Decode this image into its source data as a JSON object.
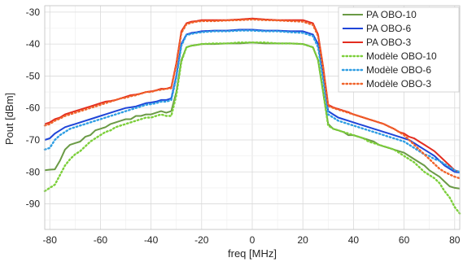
{
  "chart_data": {
    "type": "line",
    "title": "",
    "xlabel": "freq [MHz]",
    "ylabel": "Pout [dBm]",
    "xlim": [
      -82,
      82
    ],
    "ylim": [
      -98,
      -28
    ],
    "xticks": [
      -80,
      -60,
      -40,
      -20,
      0,
      20,
      40,
      60,
      80
    ],
    "yticks": [
      -30,
      -40,
      -50,
      -60,
      -70,
      -80,
      -90
    ],
    "xtick_labels": [
      "-80",
      "-60",
      "-40",
      "-20",
      "0",
      "20",
      "40",
      "60",
      "80"
    ],
    "ytick_labels": [
      "-30",
      "-40",
      "-50",
      "-60",
      "-70",
      "-80",
      "-90"
    ],
    "grid": true,
    "legend_position": "top-right",
    "series": [
      {
        "name": "PA OBO-10",
        "color": "#6a9a45",
        "dash": "solid",
        "x": [
          -82,
          -80,
          -78,
          -76,
          -74,
          -72,
          -70,
          -68,
          -66,
          -64,
          -62,
          -60,
          -58,
          -56,
          -54,
          -52,
          -50,
          -48,
          -46,
          -44,
          -42,
          -40,
          -38,
          -36,
          -34,
          -32,
          -30,
          -28,
          -26,
          -24,
          -22,
          -20,
          -15,
          -10,
          -5,
          0,
          5,
          10,
          15,
          20,
          22,
          24,
          26,
          28,
          30,
          32,
          34,
          36,
          38,
          40,
          42,
          44,
          46,
          48,
          50,
          52,
          54,
          56,
          58,
          60,
          62,
          64,
          66,
          68,
          70,
          72,
          74,
          76,
          78,
          80,
          82
        ],
        "y": [
          -79.5,
          -79.3,
          -79.2,
          -76.5,
          -73.0,
          -71.5,
          -71.0,
          -70.5,
          -69.0,
          -68.5,
          -67.0,
          -66.5,
          -66.0,
          -65.0,
          -64.5,
          -64.0,
          -63.5,
          -63.5,
          -62.5,
          -62.5,
          -62.0,
          -62.0,
          -61.5,
          -61.0,
          -61.5,
          -61.0,
          -55.0,
          -45.0,
          -41.0,
          -40.5,
          -40.3,
          -40.0,
          -40.0,
          -39.8,
          -39.8,
          -39.5,
          -39.8,
          -39.8,
          -39.8,
          -40.0,
          -40.5,
          -41.0,
          -45.0,
          -55.0,
          -65.0,
          -66.5,
          -67.0,
          -67.5,
          -68.5,
          -68.5,
          -69.0,
          -69.5,
          -70.0,
          -70.5,
          -71.5,
          -72.0,
          -72.5,
          -73.0,
          -73.5,
          -74.0,
          -75.0,
          -76.0,
          -77.0,
          -78.0,
          -79.5,
          -80.5,
          -81.5,
          -83.0,
          -84.5,
          -85.0,
          -85.2
        ]
      },
      {
        "name": "PA OBO-6",
        "color": "#1f45d8",
        "dash": "solid",
        "x": [
          -82,
          -80,
          -78,
          -76,
          -74,
          -72,
          -70,
          -68,
          -66,
          -64,
          -62,
          -60,
          -58,
          -56,
          -54,
          -52,
          -50,
          -48,
          -46,
          -44,
          -42,
          -40,
          -38,
          -36,
          -34,
          -32,
          -30,
          -28,
          -26,
          -24,
          -22,
          -20,
          -15,
          -10,
          -5,
          0,
          5,
          10,
          15,
          20,
          22,
          24,
          26,
          28,
          30,
          32,
          34,
          36,
          38,
          40,
          42,
          44,
          46,
          48,
          50,
          52,
          54,
          56,
          58,
          60,
          62,
          64,
          66,
          68,
          70,
          72,
          74,
          76,
          78,
          80,
          82
        ],
        "y": [
          -70.0,
          -69.5,
          -68.0,
          -67.0,
          -66.0,
          -65.5,
          -65.0,
          -64.5,
          -64.0,
          -63.5,
          -63.0,
          -62.5,
          -62.0,
          -61.5,
          -61.0,
          -60.5,
          -60.0,
          -59.8,
          -59.5,
          -59.0,
          -58.5,
          -58.3,
          -58.0,
          -57.5,
          -57.5,
          -57.0,
          -50.0,
          -40.0,
          -37.0,
          -36.5,
          -36.3,
          -36.0,
          -35.8,
          -35.8,
          -35.5,
          -35.5,
          -35.8,
          -35.8,
          -36.0,
          -36.0,
          -36.5,
          -37.0,
          -40.0,
          -50.0,
          -61.0,
          -62.0,
          -63.0,
          -63.5,
          -64.0,
          -64.5,
          -65.0,
          -65.5,
          -66.0,
          -66.5,
          -67.0,
          -67.5,
          -68.0,
          -68.5,
          -69.0,
          -69.5,
          -70.0,
          -71.0,
          -72.0,
          -73.0,
          -74.0,
          -75.0,
          -76.5,
          -78.0,
          -79.0,
          -80.0,
          -80.2
        ]
      },
      {
        "name": "PA OBO-3",
        "color": "#e32c1f",
        "dash": "solid",
        "x": [
          -82,
          -80,
          -78,
          -76,
          -74,
          -72,
          -70,
          -68,
          -66,
          -64,
          -62,
          -60,
          -58,
          -56,
          -54,
          -52,
          -50,
          -48,
          -46,
          -44,
          -42,
          -40,
          -38,
          -36,
          -34,
          -32,
          -30,
          -28,
          -26,
          -24,
          -22,
          -20,
          -15,
          -10,
          -5,
          0,
          5,
          10,
          15,
          20,
          22,
          24,
          26,
          28,
          30,
          32,
          34,
          36,
          38,
          40,
          42,
          44,
          46,
          48,
          50,
          52,
          54,
          56,
          58,
          60,
          62,
          64,
          66,
          68,
          70,
          72,
          74,
          76,
          78,
          80,
          82
        ],
        "y": [
          -65.0,
          -64.5,
          -63.5,
          -63.0,
          -62.0,
          -61.5,
          -61.0,
          -60.5,
          -60.0,
          -59.5,
          -59.0,
          -58.5,
          -58.0,
          -57.8,
          -57.5,
          -57.0,
          -56.5,
          -56.0,
          -55.8,
          -55.5,
          -55.0,
          -54.8,
          -54.5,
          -54.0,
          -54.0,
          -53.5,
          -46.0,
          -36.0,
          -33.5,
          -33.0,
          -32.8,
          -32.5,
          -32.5,
          -32.5,
          -32.3,
          -32.0,
          -32.3,
          -32.5,
          -32.5,
          -32.5,
          -33.0,
          -33.5,
          -37.0,
          -47.0,
          -59.0,
          -59.8,
          -60.3,
          -60.8,
          -61.3,
          -62.0,
          -62.5,
          -63.0,
          -63.5,
          -64.0,
          -64.5,
          -65.0,
          -65.8,
          -66.5,
          -67.5,
          -68.0,
          -69.0,
          -69.5,
          -70.5,
          -71.5,
          -72.5,
          -73.5,
          -75.0,
          -76.5,
          -78.0,
          -79.5,
          -80.0
        ]
      },
      {
        "name": "Modèle OBO-10",
        "color": "#7ccf3a",
        "dash": "dotted",
        "x": [
          -82,
          -80,
          -78,
          -76,
          -74,
          -72,
          -70,
          -68,
          -66,
          -64,
          -62,
          -60,
          -58,
          -56,
          -54,
          -52,
          -50,
          -48,
          -46,
          -44,
          -42,
          -40,
          -38,
          -36,
          -34,
          -32,
          -30,
          -28,
          -26,
          -24,
          -22,
          -20,
          -15,
          -10,
          -5,
          0,
          5,
          10,
          15,
          20,
          22,
          24,
          26,
          28,
          30,
          32,
          34,
          36,
          38,
          40,
          42,
          44,
          46,
          48,
          50,
          52,
          54,
          56,
          58,
          60,
          62,
          64,
          66,
          68,
          70,
          72,
          74,
          76,
          78,
          80,
          82
        ],
        "y": [
          -86.0,
          -85.0,
          -84.0,
          -81.0,
          -78.0,
          -76.0,
          -74.5,
          -73.5,
          -72.0,
          -70.5,
          -69.5,
          -68.5,
          -67.5,
          -67.0,
          -66.0,
          -65.5,
          -65.0,
          -64.5,
          -64.0,
          -63.5,
          -63.0,
          -63.0,
          -62.5,
          -62.0,
          -62.5,
          -62.5,
          -56.0,
          -45.5,
          -41.0,
          -40.5,
          -40.3,
          -40.0,
          -39.8,
          -39.8,
          -39.5,
          -39.5,
          -39.5,
          -39.8,
          -39.8,
          -40.0,
          -40.5,
          -41.0,
          -45.0,
          -55.0,
          -65.5,
          -66.5,
          -67.0,
          -67.5,
          -68.0,
          -68.5,
          -69.0,
          -69.5,
          -70.5,
          -71.0,
          -71.5,
          -72.0,
          -72.5,
          -73.0,
          -74.0,
          -75.0,
          -76.0,
          -77.0,
          -78.5,
          -80.0,
          -81.0,
          -82.0,
          -83.5,
          -86.0,
          -88.0,
          -91.0,
          -93.0
        ]
      },
      {
        "name": "Modèle OBO-6",
        "color": "#2f9ee3",
        "dash": "dotted",
        "x": [
          -82,
          -80,
          -78,
          -76,
          -74,
          -72,
          -70,
          -68,
          -66,
          -64,
          -62,
          -60,
          -58,
          -56,
          -54,
          -52,
          -50,
          -48,
          -46,
          -44,
          -42,
          -40,
          -38,
          -36,
          -34,
          -32,
          -30,
          -28,
          -26,
          -24,
          -22,
          -20,
          -15,
          -10,
          -5,
          0,
          5,
          10,
          15,
          20,
          22,
          24,
          26,
          28,
          30,
          32,
          34,
          36,
          38,
          40,
          42,
          44,
          46,
          48,
          50,
          52,
          54,
          56,
          58,
          60,
          62,
          64,
          66,
          68,
          70,
          72,
          74,
          76,
          78,
          80,
          82
        ],
        "y": [
          -73.0,
          -72.5,
          -70.0,
          -68.5,
          -67.5,
          -66.5,
          -66.0,
          -65.5,
          -65.0,
          -64.5,
          -64.0,
          -63.5,
          -63.0,
          -62.5,
          -62.0,
          -61.5,
          -61.0,
          -60.5,
          -60.0,
          -59.5,
          -59.0,
          -58.8,
          -58.5,
          -58.0,
          -58.0,
          -57.5,
          -50.5,
          -40.5,
          -37.2,
          -36.8,
          -36.5,
          -36.3,
          -36.0,
          -36.0,
          -35.8,
          -35.8,
          -36.0,
          -36.0,
          -36.3,
          -36.5,
          -37.0,
          -37.5,
          -41.0,
          -51.0,
          -62.0,
          -63.0,
          -64.0,
          -64.5,
          -65.0,
          -65.5,
          -66.0,
          -66.5,
          -67.0,
          -67.5,
          -68.0,
          -68.5,
          -69.0,
          -69.5,
          -70.0,
          -70.5,
          -71.5,
          -72.5,
          -73.5,
          -74.5,
          -75.0,
          -76.0,
          -76.5,
          -77.5,
          -78.5,
          -79.5,
          -80.0
        ]
      },
      {
        "name": "Modèle OBO-3",
        "color": "#f0632a",
        "dash": "dotted",
        "x": [
          -82,
          -80,
          -78,
          -76,
          -74,
          -72,
          -70,
          -68,
          -66,
          -64,
          -62,
          -60,
          -58,
          -56,
          -54,
          -52,
          -50,
          -48,
          -46,
          -44,
          -42,
          -40,
          -38,
          -36,
          -34,
          -32,
          -30,
          -28,
          -26,
          -24,
          -22,
          -20,
          -15,
          -10,
          -5,
          0,
          5,
          10,
          15,
          20,
          22,
          24,
          26,
          28,
          30,
          32,
          34,
          36,
          38,
          40,
          42,
          44,
          46,
          48,
          50,
          52,
          54,
          56,
          58,
          60,
          62,
          64,
          66,
          68,
          70,
          72,
          74,
          76,
          78,
          80,
          82
        ],
        "y": [
          -65.5,
          -65.0,
          -64.0,
          -63.3,
          -62.5,
          -62.0,
          -61.5,
          -61.0,
          -60.5,
          -60.0,
          -59.5,
          -59.0,
          -58.5,
          -58.0,
          -57.5,
          -57.0,
          -56.8,
          -56.3,
          -56.0,
          -55.5,
          -55.0,
          -55.0,
          -54.5,
          -54.3,
          -54.0,
          -53.8,
          -46.5,
          -36.5,
          -33.8,
          -33.3,
          -33.0,
          -32.8,
          -32.8,
          -32.6,
          -32.5,
          -32.3,
          -32.5,
          -32.6,
          -32.8,
          -33.0,
          -33.5,
          -34.0,
          -37.5,
          -47.5,
          -59.3,
          -60.0,
          -60.5,
          -61.0,
          -61.5,
          -62.0,
          -62.5,
          -63.0,
          -63.5,
          -64.0,
          -64.5,
          -65.0,
          -65.8,
          -66.5,
          -67.5,
          -68.5,
          -70.0,
          -71.5,
          -73.0,
          -74.5,
          -76.0,
          -77.5,
          -79.0,
          -80.0,
          -80.8,
          -81.5,
          -82.0
        ]
      }
    ]
  }
}
